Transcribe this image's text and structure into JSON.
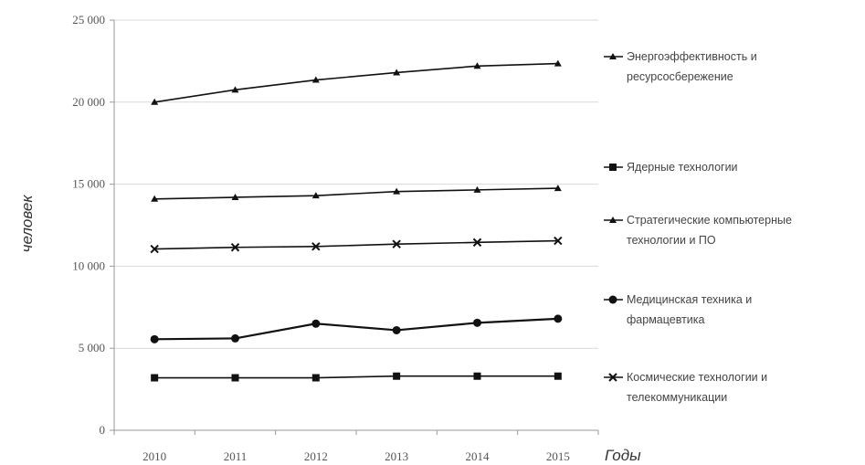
{
  "chart_data": {
    "type": "line",
    "x": [
      2010,
      2011,
      2012,
      2013,
      2014,
      2015
    ],
    "xlabel": "Годы",
    "ylabel": "человек",
    "ylim": [
      0,
      25000
    ],
    "yticks": [
      0,
      5000,
      10000,
      15000,
      20000,
      25000
    ],
    "ytick_labels": [
      "0",
      "5 000",
      "10 000",
      "15 000",
      "20 000",
      "25 000"
    ],
    "grid": true,
    "legend_position": "right",
    "series": [
      {
        "name": "Энергоэффективность и ресурсосбережение",
        "legend_lines": [
          "Энергоэффективность и",
          "ресурсосбережение"
        ],
        "marker": "triangle",
        "values": [
          20000,
          20750,
          21350,
          21800,
          22200,
          22350
        ]
      },
      {
        "name": "Ядерные технологии",
        "legend_lines": [
          "Ядерные технологии"
        ],
        "marker": "square",
        "values": [
          3200,
          3200,
          3200,
          3300,
          3300,
          3300
        ]
      },
      {
        "name": "Стратегические компьютерные технологии и ПО",
        "legend_lines": [
          "Стратегические компьютерные",
          "технологии и ПО"
        ],
        "marker": "triangle",
        "values": [
          14100,
          14200,
          14300,
          14550,
          14650,
          14750
        ]
      },
      {
        "name": "Медицинская техника и фармацевтика",
        "legend_lines": [
          "Медицинская техника и",
          "фармацевтика"
        ],
        "marker": "circle",
        "values": [
          5550,
          5600,
          6500,
          6100,
          6550,
          6800
        ]
      },
      {
        "name": "Космические технологии и телекоммуникации",
        "legend_lines": [
          "Космические технологии и",
          "телекоммуникации"
        ],
        "marker": "x",
        "values": [
          11050,
          11150,
          11200,
          11350,
          11450,
          11550
        ]
      }
    ]
  }
}
